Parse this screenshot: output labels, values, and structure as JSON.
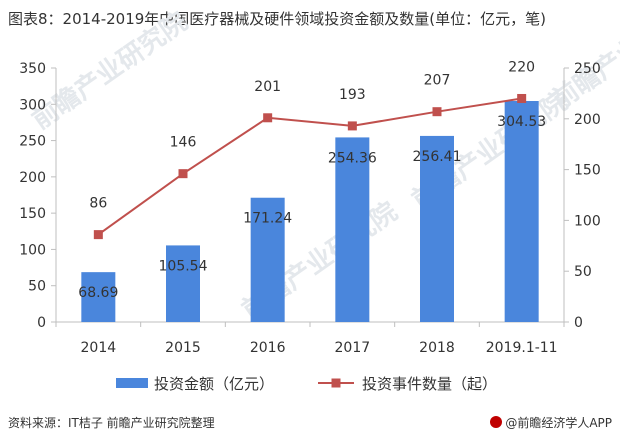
{
  "title": "图表8：2014-2019年中国医疗器械及硬件领域投资金额及数量(单位：亿元，笔)",
  "source": "资料来源：IT桔子 前瞻产业研究院整理",
  "brand": "@前瞻经济学人APP",
  "watermark": "前瞻产业研究院",
  "colors": {
    "bar": "#4a86dc",
    "line": "#c0504d",
    "axis": "#bfbfbf",
    "text": "#333333"
  },
  "chart_data": {
    "type": "bar+line",
    "categories": [
      "2014",
      "2015",
      "2016",
      "2017",
      "2018",
      "2019.1-11"
    ],
    "series": [
      {
        "name": "投资金额（亿元）",
        "type": "bar",
        "axis": "left",
        "values": [
          68.69,
          105.54,
          171.24,
          254.36,
          256.41,
          304.53
        ]
      },
      {
        "name": "投资事件数量（起）",
        "type": "line",
        "axis": "right",
        "values": [
          86,
          146,
          201,
          193,
          207,
          220
        ]
      }
    ],
    "y_left": {
      "min": 0,
      "max": 350,
      "ticks": [
        0,
        50,
        100,
        150,
        200,
        250,
        300,
        350
      ]
    },
    "y_right": {
      "min": 0,
      "max": 250,
      "ticks": [
        0,
        50,
        100,
        150,
        200,
        250
      ]
    },
    "legend_position": "bottom"
  }
}
